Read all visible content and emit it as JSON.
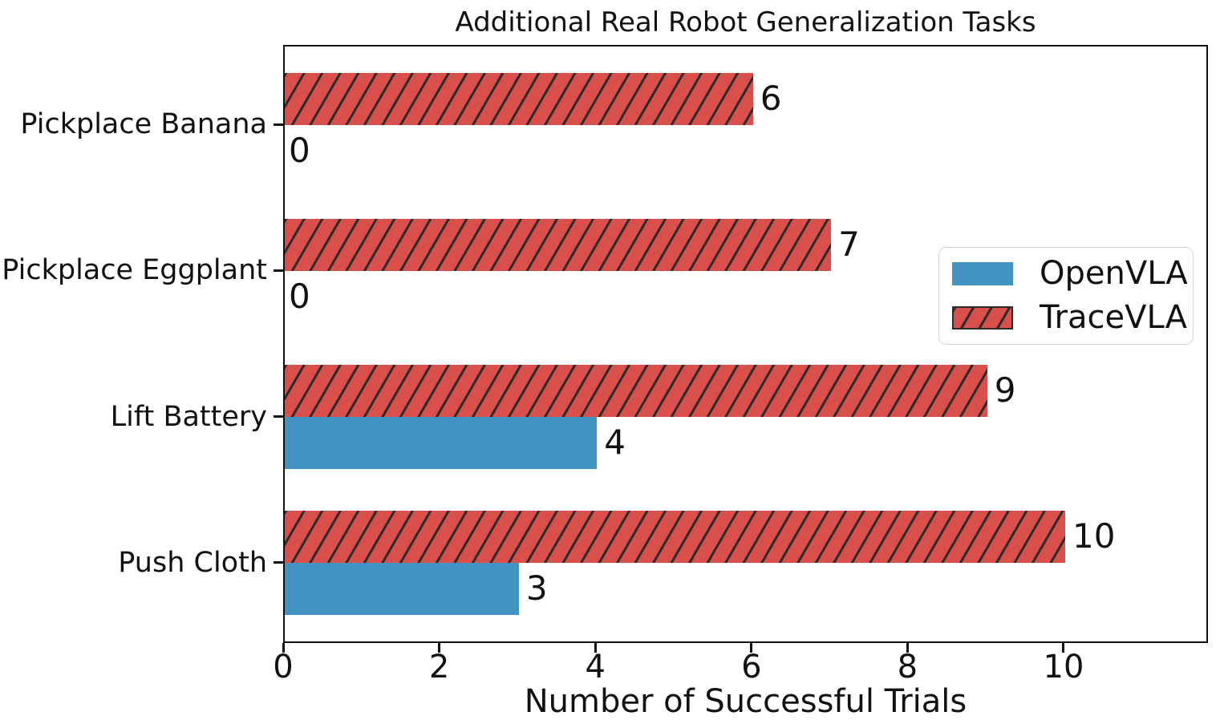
{
  "chart_data": {
    "type": "bar",
    "orientation": "horizontal",
    "title": "Additional Real Robot Generalization Tasks",
    "xlabel": "Number of Successful Trials",
    "ylabel": "",
    "categories": [
      "Pickplace Banana",
      "Pickplace Eggplant",
      "Lift Battery",
      "Push Cloth"
    ],
    "series": [
      {
        "name": "OpenVLA",
        "color": "#4393c3",
        "hatch": "none",
        "hatch_color": null,
        "values": [
          0,
          0,
          4,
          3
        ]
      },
      {
        "name": "TraceVLA",
        "color": "#d94f4b",
        "hatch": "/",
        "hatch_color": "#2b2b2b",
        "values": [
          6,
          7,
          9,
          10
        ]
      }
    ],
    "value_labels_shown": true,
    "xticks": [
      "0",
      "2",
      "4",
      "6",
      "8",
      "10"
    ],
    "xtick_values": [
      0,
      2,
      4,
      6,
      8,
      10
    ],
    "xlim": [
      0,
      11.85
    ],
    "grid": false,
    "legend": {
      "position": "center-right",
      "entries": [
        "OpenVLA",
        "TraceVLA"
      ]
    },
    "colors": {
      "axis": "#111111",
      "text": "#111111",
      "legend_border": "#d6d6d6"
    }
  }
}
